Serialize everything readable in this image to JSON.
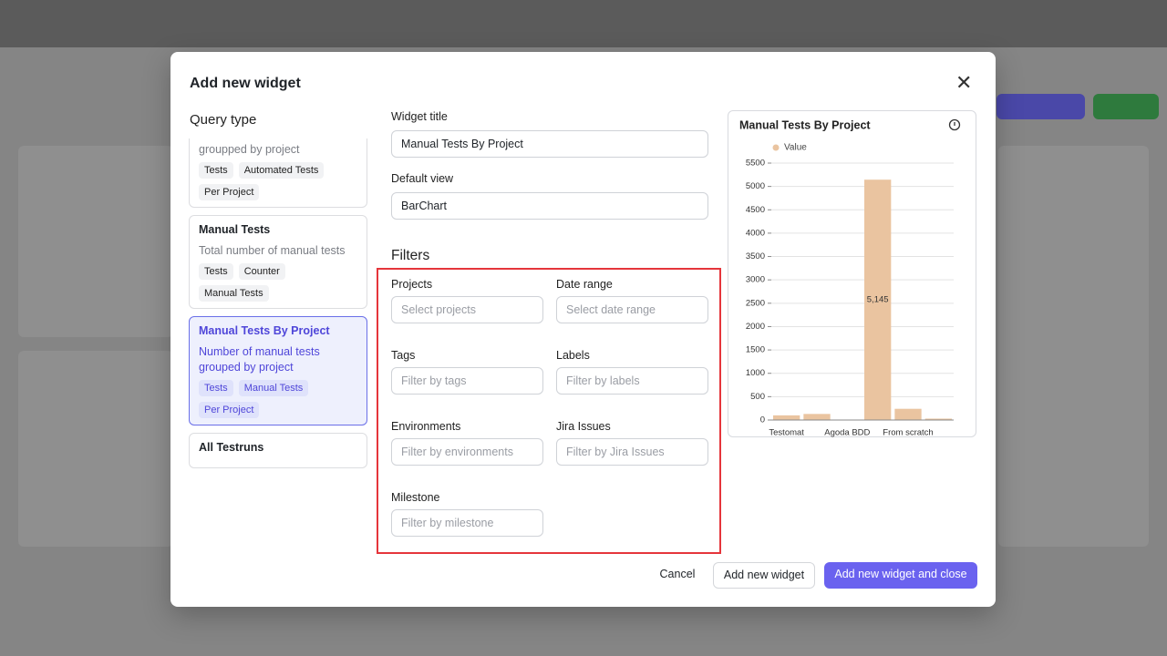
{
  "modal": {
    "title": "Add new widget",
    "query_type": "Query type",
    "query_cards": [
      {
        "description": "Number of automated tests groupped by project",
        "tags": [
          "Tests",
          "Automated Tests",
          "Per Project"
        ]
      },
      {
        "name": "Manual Tests",
        "description": "Total number of manual tests",
        "tags": [
          "Tests",
          "Counter",
          "Manual Tests"
        ]
      },
      {
        "name": "Manual Tests By Project",
        "description": "Number of manual tests grouped by project",
        "tags": [
          "Tests",
          "Manual Tests",
          "Per Project"
        ],
        "selected": true
      },
      {
        "name": "All Testruns"
      }
    ],
    "widget_title_label": "Widget title",
    "widget_title_value": "Manual Tests By Project",
    "default_view_label": "Default view",
    "default_view_value": "BarChart",
    "filters_heading": "Filters",
    "filters": [
      {
        "label": "Projects",
        "placeholder": "Select projects"
      },
      {
        "label": "Date range",
        "placeholder": "Select date range"
      },
      {
        "label": "Tags",
        "placeholder": "Filter by tags"
      },
      {
        "label": "Labels",
        "placeholder": "Filter by labels"
      },
      {
        "label": "Environments",
        "placeholder": "Filter by environments"
      },
      {
        "label": "Jira Issues",
        "placeholder": "Filter by Jira Issues"
      },
      {
        "label": "Milestone",
        "placeholder": "Filter by milestone"
      }
    ],
    "buttons": {
      "cancel": "Cancel",
      "add": "Add new widget",
      "add_close": "Add new widget and close"
    }
  },
  "chart_data": {
    "type": "bar",
    "title": "Manual Tests By Project",
    "legend": "Value",
    "color": "#eac4a0",
    "categories": [
      "Testomat",
      null,
      "Agoda BDD",
      null,
      "From scratch",
      null
    ],
    "values": [
      100,
      130,
      0,
      5145,
      240,
      30
    ],
    "value_labels": [
      null,
      null,
      null,
      "5,145",
      null,
      null
    ],
    "ylim": [
      0,
      5500
    ],
    "yticks": [
      0,
      500,
      1000,
      1500,
      2000,
      2500,
      3000,
      3500,
      4000,
      4500,
      5000,
      5500
    ],
    "grid": true
  }
}
